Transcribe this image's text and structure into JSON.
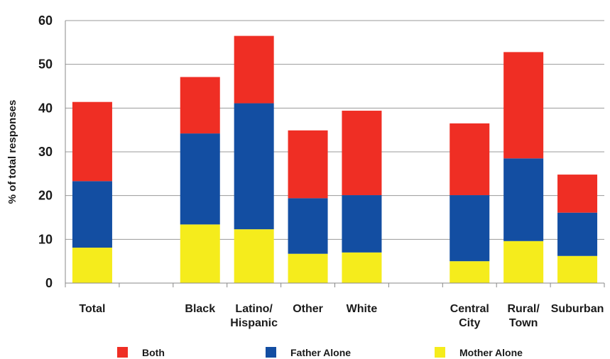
{
  "chart_data": {
    "type": "bar",
    "stacked": true,
    "ylabel": "% of total responses",
    "xlabel": "",
    "ylim": [
      0,
      60
    ],
    "yticks": [
      0,
      10,
      20,
      30,
      40,
      50,
      60
    ],
    "grid": true,
    "legend_position": "bottom",
    "slots": [
      {
        "label": [
          "Total"
        ],
        "bar": true
      },
      {
        "label": [],
        "bar": false
      },
      {
        "label": [
          "Black"
        ],
        "bar": true
      },
      {
        "label": [
          "Latino/",
          "Hispanic"
        ],
        "bar": true
      },
      {
        "label": [
          "Other"
        ],
        "bar": true
      },
      {
        "label": [
          "White"
        ],
        "bar": true
      },
      {
        "label": [],
        "bar": false
      },
      {
        "label": [
          "Central",
          "City"
        ],
        "bar": true
      },
      {
        "label": [
          "Rural/",
          "Town"
        ],
        "bar": true
      },
      {
        "label": [
          "Suburban"
        ],
        "bar": true
      }
    ],
    "categories": [
      "Total",
      "Black",
      "Latino/Hispanic",
      "Other",
      "White",
      "Central City",
      "Rural/Town",
      "Suburban"
    ],
    "series": [
      {
        "name": "Mother Alone",
        "color": "#f5ec1c",
        "values": [
          8.1,
          13.4,
          12.3,
          6.7,
          7.0,
          5.0,
          9.6,
          6.2
        ]
      },
      {
        "name": "Father Alone",
        "color": "#134ea2",
        "values": [
          15.2,
          20.8,
          28.8,
          12.7,
          13.1,
          15.1,
          18.9,
          9.9
        ]
      },
      {
        "name": "Both",
        "color": "#ef2e24",
        "values": [
          18.1,
          12.9,
          15.4,
          15.5,
          19.3,
          16.4,
          24.3,
          8.7
        ]
      }
    ],
    "legend_order": [
      "Both",
      "Father Alone",
      "Mother Alone"
    ]
  }
}
